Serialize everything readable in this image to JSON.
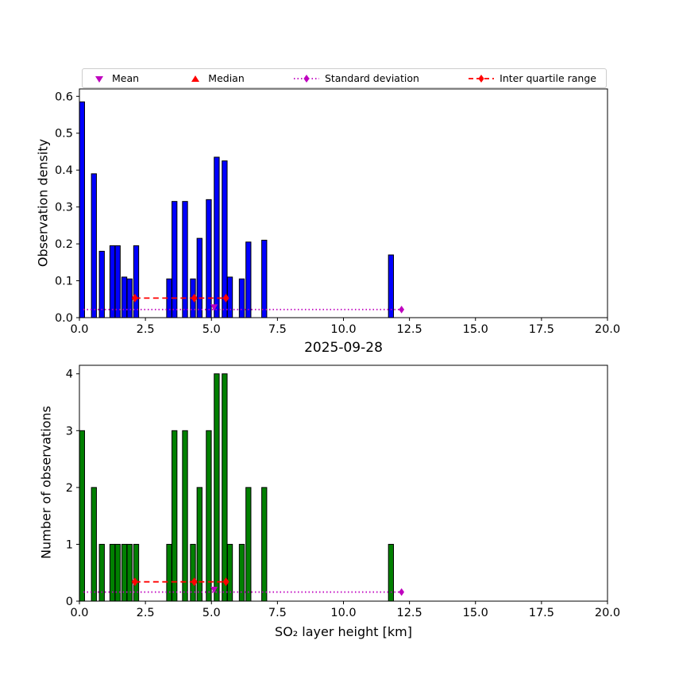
{
  "figure": {
    "background": "#ffffff"
  },
  "legend": {
    "items": [
      {
        "label": "Mean",
        "marker": "triangle-down",
        "color": "#bf00bf",
        "line": "none"
      },
      {
        "label": "Median",
        "marker": "triangle-up",
        "color": "#ff0000",
        "line": "none"
      },
      {
        "label": "Standard deviation",
        "marker": "diamond",
        "color": "#bf00bf",
        "line": "dotted"
      },
      {
        "label": "Inter quartile range",
        "marker": "diamond",
        "color": "#ff0000",
        "line": "dashed"
      }
    ]
  },
  "chart_data": [
    {
      "type": "bar",
      "ylabel": "Observation density",
      "xlim": [
        0,
        20
      ],
      "ylim": [
        0,
        0.62
      ],
      "xticks": [
        0,
        2.5,
        5,
        7.5,
        10,
        12.5,
        15,
        17.5,
        20
      ],
      "xtick_labels": [
        "0.0",
        "2.5",
        "5.0",
        "7.5",
        "10.0",
        "12.5",
        "15.0",
        "17.5",
        "20.0"
      ],
      "yticks": [
        0,
        0.1,
        0.2,
        0.3,
        0.4,
        0.5,
        0.6
      ],
      "ytick_labels": [
        "0.0",
        "0.1",
        "0.2",
        "0.3",
        "0.4",
        "0.5",
        "0.6"
      ],
      "bar_color": "#0000ff",
      "bar_edge": "#000000",
      "bar_width": 0.19,
      "bars": [
        [
          0.1,
          0.585
        ],
        [
          0.55,
          0.39
        ],
        [
          0.85,
          0.18
        ],
        [
          1.25,
          0.195
        ],
        [
          1.45,
          0.195
        ],
        [
          1.7,
          0.11
        ],
        [
          1.9,
          0.105
        ],
        [
          2.15,
          0.195
        ],
        [
          3.4,
          0.105
        ],
        [
          3.6,
          0.315
        ],
        [
          4.0,
          0.315
        ],
        [
          4.3,
          0.105
        ],
        [
          4.55,
          0.215
        ],
        [
          4.9,
          0.32
        ],
        [
          5.2,
          0.435
        ],
        [
          5.5,
          0.425
        ],
        [
          5.7,
          0.11
        ],
        [
          6.15,
          0.105
        ],
        [
          6.4,
          0.205
        ],
        [
          7.0,
          0.21
        ],
        [
          11.8,
          0.17
        ]
      ],
      "annotations": {
        "mean_marker": {
          "x": 5.1,
          "y": 0.028,
          "color": "#bf00bf"
        },
        "std_line": {
          "y": 0.022,
          "x0": 0.15,
          "x1": 12.2,
          "markers": [
            12.2
          ],
          "color": "#bf00bf",
          "style": "dotted"
        },
        "iqr_line": {
          "y": 0.053,
          "x0": 2.1,
          "x1": 5.55,
          "markers": [
            2.1,
            4.35,
            5.55
          ],
          "color": "#ff0000",
          "style": "dashed"
        }
      }
    },
    {
      "type": "bar",
      "title": "2025-09-28",
      "xlabel": "SO₂ layer height [km]",
      "ylabel": "Number of observations",
      "xlim": [
        0,
        20
      ],
      "ylim": [
        0,
        4.15
      ],
      "xticks": [
        0,
        2.5,
        5,
        7.5,
        10,
        12.5,
        15,
        17.5,
        20
      ],
      "xtick_labels": [
        "0.0",
        "2.5",
        "5.0",
        "7.5",
        "10.0",
        "12.5",
        "15.0",
        "17.5",
        "20.0"
      ],
      "yticks": [
        0,
        1,
        2,
        3,
        4
      ],
      "ytick_labels": [
        "0",
        "1",
        "2",
        "3",
        "4"
      ],
      "bar_color": "#008000",
      "bar_edge": "#000000",
      "bar_width": 0.19,
      "bars": [
        [
          0.1,
          3
        ],
        [
          0.55,
          2
        ],
        [
          0.85,
          1
        ],
        [
          1.25,
          1
        ],
        [
          1.45,
          1
        ],
        [
          1.7,
          1
        ],
        [
          1.9,
          1
        ],
        [
          2.15,
          1
        ],
        [
          3.4,
          1
        ],
        [
          3.6,
          3
        ],
        [
          4.0,
          3
        ],
        [
          4.3,
          1
        ],
        [
          4.55,
          2
        ],
        [
          4.9,
          3
        ],
        [
          5.2,
          4
        ],
        [
          5.5,
          4
        ],
        [
          5.7,
          1
        ],
        [
          6.15,
          1
        ],
        [
          6.4,
          2
        ],
        [
          7.0,
          2
        ],
        [
          11.8,
          1
        ]
      ],
      "annotations": {
        "mean_marker": {
          "x": 5.1,
          "y": 0.2,
          "color": "#bf00bf"
        },
        "std_line": {
          "y": 0.16,
          "x0": 0.15,
          "x1": 12.2,
          "markers": [
            12.2
          ],
          "color": "#bf00bf",
          "style": "dotted"
        },
        "iqr_line": {
          "y": 0.34,
          "x0": 2.1,
          "x1": 5.55,
          "markers": [
            2.1,
            4.35,
            5.55
          ],
          "color": "#ff0000",
          "style": "dashed"
        }
      }
    }
  ]
}
